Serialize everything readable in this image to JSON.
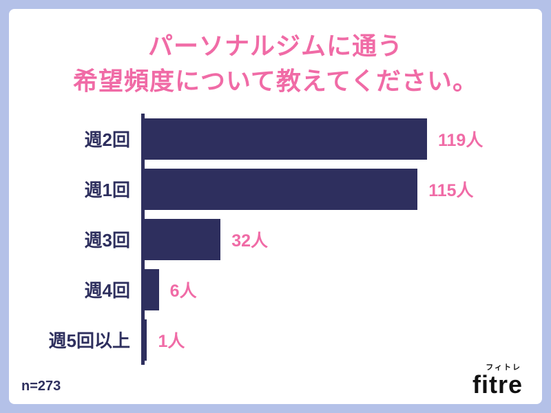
{
  "page": {
    "background_color": "#b4c1e8",
    "card_color": "#ffffff"
  },
  "title": {
    "line1": "パーソナルジムに通う",
    "line2": "希望頻度について教えてください。",
    "color": "#f06ba6"
  },
  "chart_data": {
    "type": "bar",
    "orientation": "horizontal",
    "title": "パーソナルジムに通う希望頻度について教えてください。",
    "categories": [
      "週2回",
      "週1回",
      "週3回",
      "週4回",
      "週5回以上"
    ],
    "values": [
      119,
      115,
      32,
      6,
      1
    ],
    "value_labels": [
      "119人",
      "115人",
      "32人",
      "6人",
      "1人"
    ],
    "unit": "人",
    "xlim": [
      0,
      130
    ],
    "bar_color": "#2e2f5e",
    "category_label_color": "#2e2f5e",
    "value_label_color": "#f06ba6",
    "grid": false,
    "legend": false
  },
  "footer": {
    "sample_size": "n=273",
    "logo_text": "fitre",
    "logo_kana": "フィトレ"
  }
}
